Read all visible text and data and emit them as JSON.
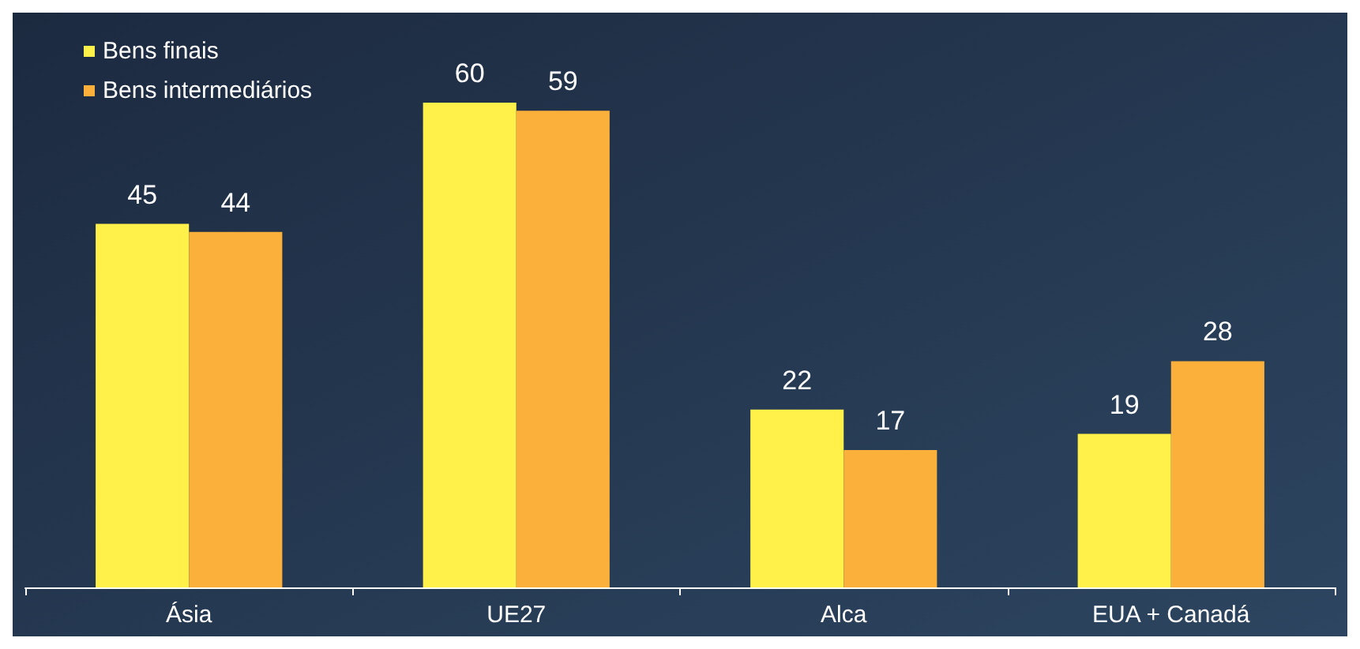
{
  "chart_data": {
    "type": "bar",
    "categories": [
      "Ásia",
      "UE27",
      "Alca",
      "EUA + Canadá"
    ],
    "series": [
      {
        "name": "Bens finais",
        "color": "#fff04a",
        "values": [
          45,
          60,
          22,
          19
        ]
      },
      {
        "name": "Bens intermediários",
        "color": "#fbb03b",
        "values": [
          44,
          59,
          17,
          28
        ]
      }
    ],
    "data_labels": true,
    "legend": "top left",
    "grid": false
  }
}
